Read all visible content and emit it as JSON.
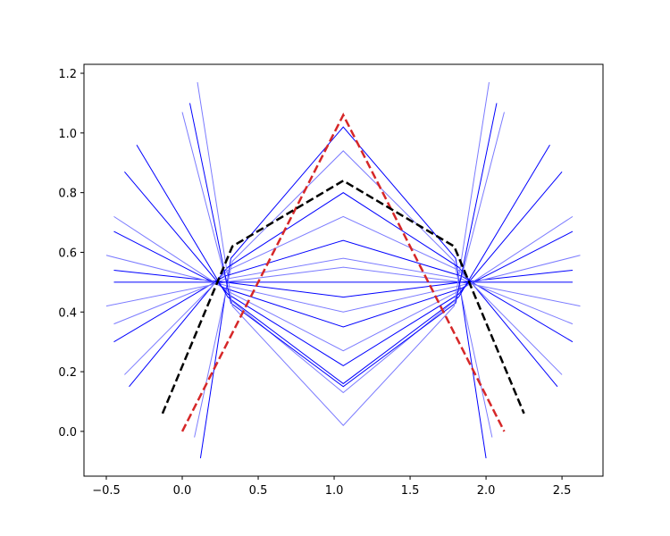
{
  "chart_data": {
    "type": "line",
    "xlim": [
      -0.647,
      2.77
    ],
    "ylim": [
      -0.15,
      1.23
    ],
    "xticks": [
      {
        "value": -0.5,
        "label": "−0.5"
      },
      {
        "value": 0,
        "label": "0.0"
      },
      {
        "value": 0.5,
        "label": "0.5"
      },
      {
        "value": 1,
        "label": "1.0"
      },
      {
        "value": 1.5,
        "label": "1.5"
      },
      {
        "value": 2,
        "label": "2.0"
      },
      {
        "value": 2.5,
        "label": "2.5"
      }
    ],
    "yticks": [
      {
        "value": 0,
        "label": "0.0"
      },
      {
        "value": 0.2,
        "label": "0.2"
      },
      {
        "value": 0.4,
        "label": "0.4"
      },
      {
        "value": 0.6,
        "label": "0.6"
      },
      {
        "value": 0.8,
        "label": "0.8"
      },
      {
        "value": 1,
        "label": "1.0"
      },
      {
        "value": 1.2,
        "label": "1.2"
      }
    ],
    "series": [
      {
        "color": "#0000ff",
        "x": [
          0.12,
          0.32,
          1.06,
          1.8,
          2.0
        ],
        "values": [
          -0.09,
          0.58,
          1.02,
          0.58,
          -0.09
        ]
      },
      {
        "color": "#7b7bff",
        "x": [
          0.08,
          0.33,
          1.06,
          1.79,
          2.04
        ],
        "values": [
          -0.02,
          0.57,
          0.94,
          0.57,
          -0.02
        ]
      },
      {
        "color": "#0000ff",
        "x": [
          -0.35,
          0.3,
          1.06,
          1.82,
          2.47
        ],
        "values": [
          0.15,
          0.55,
          0.8,
          0.55,
          0.15
        ]
      },
      {
        "color": "#7b7bff",
        "x": [
          -0.38,
          0.3,
          1.06,
          1.82,
          2.5
        ],
        "values": [
          0.19,
          0.54,
          0.72,
          0.54,
          0.19
        ]
      },
      {
        "color": "#0000ff",
        "x": [
          -0.45,
          0.28,
          1.06,
          1.84,
          2.57
        ],
        "values": [
          0.3,
          0.52,
          0.64,
          0.52,
          0.3
        ]
      },
      {
        "color": "#7b7bff",
        "x": [
          -0.45,
          0.28,
          1.06,
          1.84,
          2.57
        ],
        "values": [
          0.36,
          0.51,
          0.58,
          0.51,
          0.36
        ]
      },
      {
        "color": "#7b7bff",
        "x": [
          -0.5,
          0.28,
          1.06,
          1.84,
          2.62
        ],
        "values": [
          0.42,
          0.5,
          0.55,
          0.5,
          0.42
        ]
      },
      {
        "color": "#0000ff",
        "x": [
          -0.45,
          0.28,
          1.06,
          1.84,
          2.57
        ],
        "values": [
          0.5,
          0.5,
          0.5,
          0.5,
          0.5
        ]
      },
      {
        "color": "#0000ff",
        "x": [
          -0.45,
          0.28,
          1.06,
          1.84,
          2.57
        ],
        "values": [
          0.54,
          0.5,
          0.45,
          0.5,
          0.54
        ]
      },
      {
        "color": "#7b7bff",
        "x": [
          -0.5,
          0.28,
          1.06,
          1.84,
          2.62
        ],
        "values": [
          0.59,
          0.49,
          0.4,
          0.49,
          0.59
        ]
      },
      {
        "color": "#0000ff",
        "x": [
          -0.45,
          0.28,
          1.06,
          1.84,
          2.57
        ],
        "values": [
          0.67,
          0.48,
          0.35,
          0.48,
          0.67
        ]
      },
      {
        "color": "#7b7bff",
        "x": [
          -0.45,
          0.3,
          1.06,
          1.82,
          2.57
        ],
        "values": [
          0.72,
          0.47,
          0.27,
          0.47,
          0.72
        ]
      },
      {
        "color": "#0000ff",
        "x": [
          -0.38,
          0.3,
          1.06,
          1.82,
          2.5
        ],
        "values": [
          0.87,
          0.46,
          0.22,
          0.46,
          0.87
        ]
      },
      {
        "color": "#0000ff",
        "x": [
          -0.3,
          0.3,
          1.06,
          1.82,
          2.42
        ],
        "values": [
          0.96,
          0.45,
          0.16,
          0.45,
          0.96
        ]
      },
      {
        "color": "#7b7bff",
        "x": [
          0.0,
          0.32,
          1.06,
          1.8,
          2.12
        ],
        "values": [
          1.07,
          0.44,
          0.13,
          0.44,
          1.07
        ]
      },
      {
        "color": "#0000ff",
        "x": [
          0.05,
          0.32,
          1.06,
          1.8,
          2.07
        ],
        "values": [
          1.1,
          0.43,
          0.15,
          0.43,
          1.1
        ]
      },
      {
        "color": "#7b7bff",
        "x": [
          0.1,
          0.33,
          1.06,
          1.79,
          2.02
        ],
        "values": [
          1.17,
          0.42,
          0.02,
          0.42,
          1.17
        ]
      },
      {
        "color": "#d62728",
        "linestyle": "dashed",
        "x": [
          0,
          0.33,
          1.06,
          1.79,
          2.12
        ],
        "values": [
          0,
          0.33,
          1.06,
          0.33,
          0
        ]
      },
      {
        "color": "#000000",
        "linestyle": "dashed",
        "x": [
          -0.13,
          0.33,
          1.06,
          1.79,
          2.25
        ],
        "values": [
          0.06,
          0.62,
          0.84,
          0.62,
          0.06
        ]
      }
    ]
  }
}
